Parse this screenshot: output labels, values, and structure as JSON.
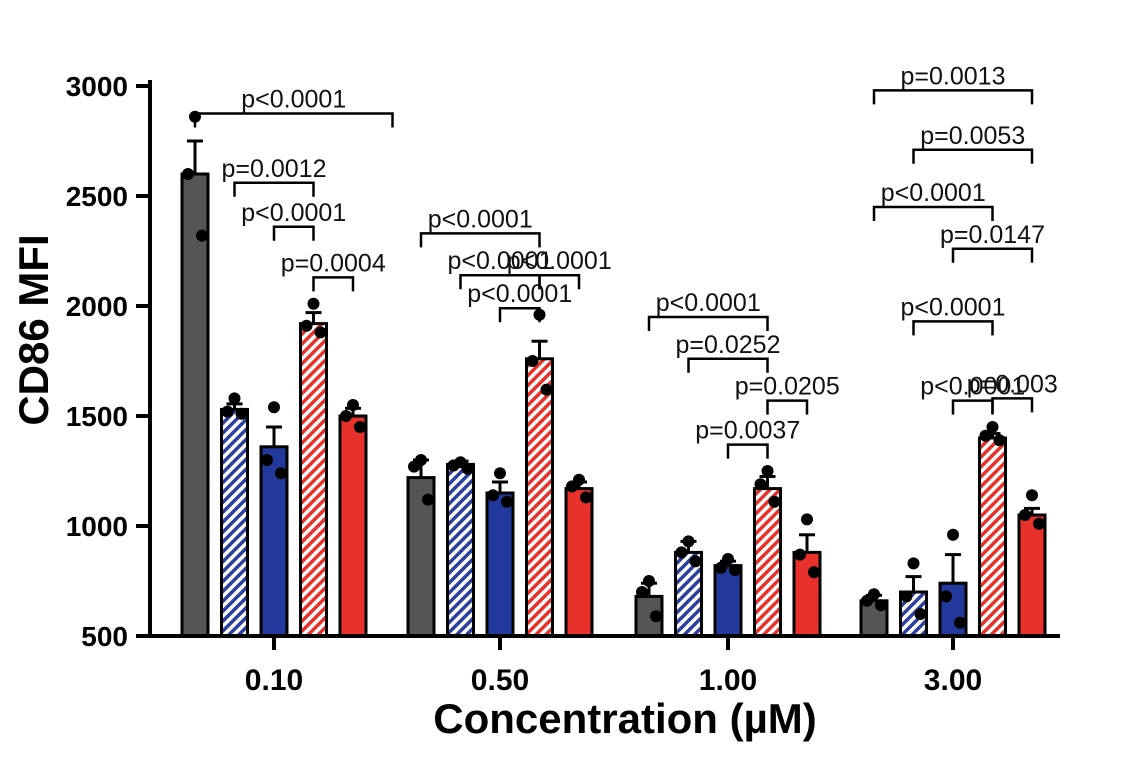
{
  "chart_data": {
    "type": "bar",
    "xlabel": "Concentration (µM)",
    "ylabel": "CD86 MFI",
    "ylim": [
      500,
      3000
    ],
    "yticks": [
      "500",
      "1000",
      "1500",
      "2000",
      "2500",
      "3000"
    ],
    "categories": [
      "0.10",
      "0.50",
      "1.00",
      "3.00"
    ],
    "grid": false,
    "legend": "none",
    "series": [
      {
        "color": "#555555",
        "pattern": "solid",
        "values": [
          2600,
          1220,
          680,
          660
        ],
        "errors": [
          150,
          80,
          60,
          25
        ],
        "points": [
          [
            2860,
            2600,
            2320
          ],
          [
            1300,
            1270,
            1120
          ],
          [
            750,
            700,
            590
          ],
          [
            690,
            660,
            640
          ]
        ]
      },
      {
        "color": "#2b3f9c",
        "pattern": "hatched",
        "values": [
          1530,
          1280,
          880,
          700
        ],
        "errors": [
          25,
          15,
          50,
          70
        ],
        "points": [
          [
            1580,
            1520,
            1510
          ],
          [
            1290,
            1275,
            1260
          ],
          [
            930,
            880,
            840
          ],
          [
            830,
            680,
            600
          ]
        ]
      },
      {
        "color": "#22389a",
        "pattern": "solid",
        "values": [
          1360,
          1150,
          820,
          740
        ],
        "errors": [
          90,
          50,
          20,
          130
        ],
        "points": [
          [
            1540,
            1300,
            1240
          ],
          [
            1240,
            1140,
            1110
          ],
          [
            850,
            810,
            800
          ],
          [
            960,
            680,
            560
          ]
        ]
      },
      {
        "color": "#e8312a",
        "pattern": "hatched",
        "values": [
          1920,
          1760,
          1170,
          1400
        ],
        "errors": [
          50,
          80,
          55,
          20
        ],
        "points": [
          [
            2010,
            1910,
            1880
          ],
          [
            1960,
            1750,
            1620
          ],
          [
            1250,
            1190,
            1110
          ],
          [
            1450,
            1410,
            1390
          ]
        ]
      },
      {
        "color": "#e8312a",
        "pattern": "solid",
        "values": [
          1500,
          1170,
          880,
          1050
        ],
        "errors": [
          35,
          30,
          80,
          30
        ],
        "points": [
          [
            1550,
            1500,
            1450
          ],
          [
            1210,
            1180,
            1130
          ],
          [
            1030,
            870,
            790
          ],
          [
            1140,
            1050,
            1010
          ]
        ]
      }
    ],
    "annotations": [
      {
        "text": "p<0.0001",
        "group": 0,
        "a": 0,
        "b": 5,
        "y": 2875
      },
      {
        "text": "p=0.0012",
        "group": 0,
        "a": 1,
        "b": 3,
        "y": 2560
      },
      {
        "text": "p<0.0001",
        "group": 0,
        "a": 2,
        "b": 3,
        "y": 2360
      },
      {
        "text": "p=0.0004",
        "group": 0,
        "a": 3,
        "b": 4,
        "y": 2130
      },
      {
        "text": "p<0.0001",
        "group": 1,
        "a": 0,
        "b": 3,
        "y": 2330
      },
      {
        "text": "p<0.0001",
        "group": 1,
        "a": 1,
        "b": 3,
        "y": 2140
      },
      {
        "text": "p<0.0001",
        "group": 1,
        "a": 3,
        "b": 4,
        "y": 2140
      },
      {
        "text": "p<0.0001",
        "group": 1,
        "a": 2,
        "b": 3,
        "y": 1990
      },
      {
        "text": "p<0.0001",
        "group": 2,
        "a": 0,
        "b": 3,
        "y": 1950
      },
      {
        "text": "p=0.0252",
        "group": 2,
        "a": 1,
        "b": 3,
        "y": 1760
      },
      {
        "text": "p=0.0205",
        "group": 2,
        "a": 3,
        "b": 4,
        "y": 1570
      },
      {
        "text": "p=0.0037",
        "group": 2,
        "a": 2,
        "b": 3,
        "y": 1370
      },
      {
        "text": "p=0.0013",
        "group": 3,
        "a": 0,
        "b": 4,
        "y": 2980
      },
      {
        "text": "p=0.0053",
        "group": 3,
        "a": 1,
        "b": 4,
        "y": 2710
      },
      {
        "text": "p<0.0001",
        "group": 3,
        "a": 0,
        "b": 3,
        "y": 2450
      },
      {
        "text": "p=0.0147",
        "group": 3,
        "a": 2,
        "b": 4,
        "y": 2260
      },
      {
        "text": "p<0.0001",
        "group": 3,
        "a": 1,
        "b": 3,
        "y": 1930
      },
      {
        "text": "p<0.0001",
        "group": 3,
        "a": 2,
        "b": 3,
        "y": 1570
      },
      {
        "text": "p=0.003",
        "group": 3,
        "a": 3,
        "b": 4,
        "y": 1580
      }
    ]
  }
}
